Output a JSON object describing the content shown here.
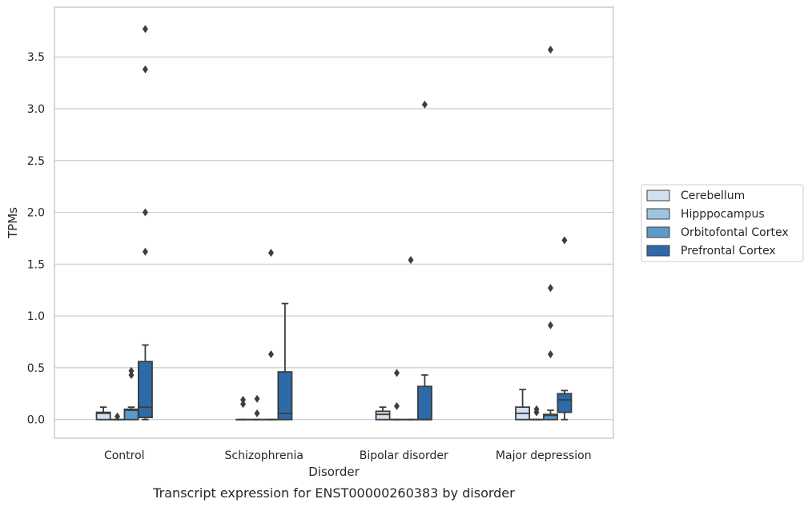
{
  "chart_data": {
    "type": "boxplot",
    "caption": "Transcript expression for ENST00000260383 by disorder",
    "xlabel": "Disorder",
    "ylabel": "TPMs",
    "ylim": [
      -0.18,
      3.98
    ],
    "yticks": [
      0.0,
      0.5,
      1.0,
      1.5,
      2.0,
      2.5,
      3.0,
      3.5
    ],
    "ytick_labels": [
      "0.0",
      "0.5",
      "1.0",
      "1.5",
      "2.0",
      "2.5",
      "3.0",
      "3.5"
    ],
    "grid": "horizontal",
    "legend_position": "right",
    "categories": [
      "Control",
      "Schizophrenia",
      "Bipolar disorder",
      "Major depression"
    ],
    "series": [
      {
        "name": "Cerebellum",
        "color": "#d2e1f1",
        "boxes": [
          {
            "q1": 0.0,
            "median": 0.06,
            "q3": 0.07,
            "whisker_low": 0.0,
            "whisker_high": 0.12,
            "outliers": []
          },
          {
            "q1": 0.0,
            "median": 0.0,
            "q3": 0.0,
            "whisker_low": 0.0,
            "whisker_high": 0.0,
            "outliers": [
              0.15,
              0.19
            ]
          },
          {
            "q1": 0.0,
            "median": 0.05,
            "q3": 0.08,
            "whisker_low": 0.0,
            "whisker_high": 0.12,
            "outliers": []
          },
          {
            "q1": 0.0,
            "median": 0.06,
            "q3": 0.12,
            "whisker_low": 0.0,
            "whisker_high": 0.29,
            "outliers": []
          }
        ]
      },
      {
        "name": "Hipppocampus",
        "color": "#9dc5df",
        "boxes": [
          {
            "q1": 0.0,
            "median": 0.0,
            "q3": 0.0,
            "whisker_low": 0.0,
            "whisker_high": 0.0,
            "outliers": [
              0.03
            ]
          },
          {
            "q1": 0.0,
            "median": 0.0,
            "q3": 0.0,
            "whisker_low": 0.0,
            "whisker_high": 0.0,
            "outliers": [
              0.06,
              0.2
            ]
          },
          {
            "q1": 0.0,
            "median": 0.0,
            "q3": 0.0,
            "whisker_low": 0.0,
            "whisker_high": 0.0,
            "outliers": [
              0.13,
              0.45
            ]
          },
          {
            "q1": 0.0,
            "median": 0.0,
            "q3": 0.0,
            "whisker_low": 0.0,
            "whisker_high": 0.0,
            "outliers": [
              0.07,
              0.1
            ]
          }
        ]
      },
      {
        "name": "Orbitofontal Cortex",
        "color": "#5b9ac9",
        "boxes": [
          {
            "q1": 0.0,
            "median": 0.09,
            "q3": 0.1,
            "whisker_low": 0.0,
            "whisker_high": 0.12,
            "outliers": [
              0.43,
              0.47
            ]
          },
          {
            "q1": 0.0,
            "median": 0.0,
            "q3": 0.0,
            "whisker_low": 0.0,
            "whisker_high": 0.0,
            "outliers": [
              0.63,
              1.61
            ]
          },
          {
            "q1": 0.0,
            "median": 0.0,
            "q3": 0.0,
            "whisker_low": 0.0,
            "whisker_high": 0.0,
            "outliers": [
              1.54
            ]
          },
          {
            "q1": 0.0,
            "median": 0.04,
            "q3": 0.05,
            "whisker_low": 0.0,
            "whisker_high": 0.09,
            "outliers": [
              0.63,
              0.91,
              1.27,
              3.57
            ]
          }
        ]
      },
      {
        "name": "Prefrontal Cortex",
        "color": "#2c6aa8",
        "boxes": [
          {
            "q1": 0.02,
            "median": 0.12,
            "q3": 0.56,
            "whisker_low": 0.0,
            "whisker_high": 0.72,
            "outliers": [
              1.62,
              2.0,
              3.38,
              3.77
            ]
          },
          {
            "q1": 0.0,
            "median": 0.06,
            "q3": 0.46,
            "whisker_low": 0.0,
            "whisker_high": 1.12,
            "outliers": []
          },
          {
            "q1": 0.0,
            "median": 0.0,
            "q3": 0.32,
            "whisker_low": 0.0,
            "whisker_high": 0.43,
            "outliers": [
              3.04
            ]
          },
          {
            "q1": 0.07,
            "median": 0.19,
            "q3": 0.25,
            "whisker_low": 0.0,
            "whisker_high": 0.28,
            "outliers": [
              1.73
            ]
          }
        ]
      }
    ]
  }
}
